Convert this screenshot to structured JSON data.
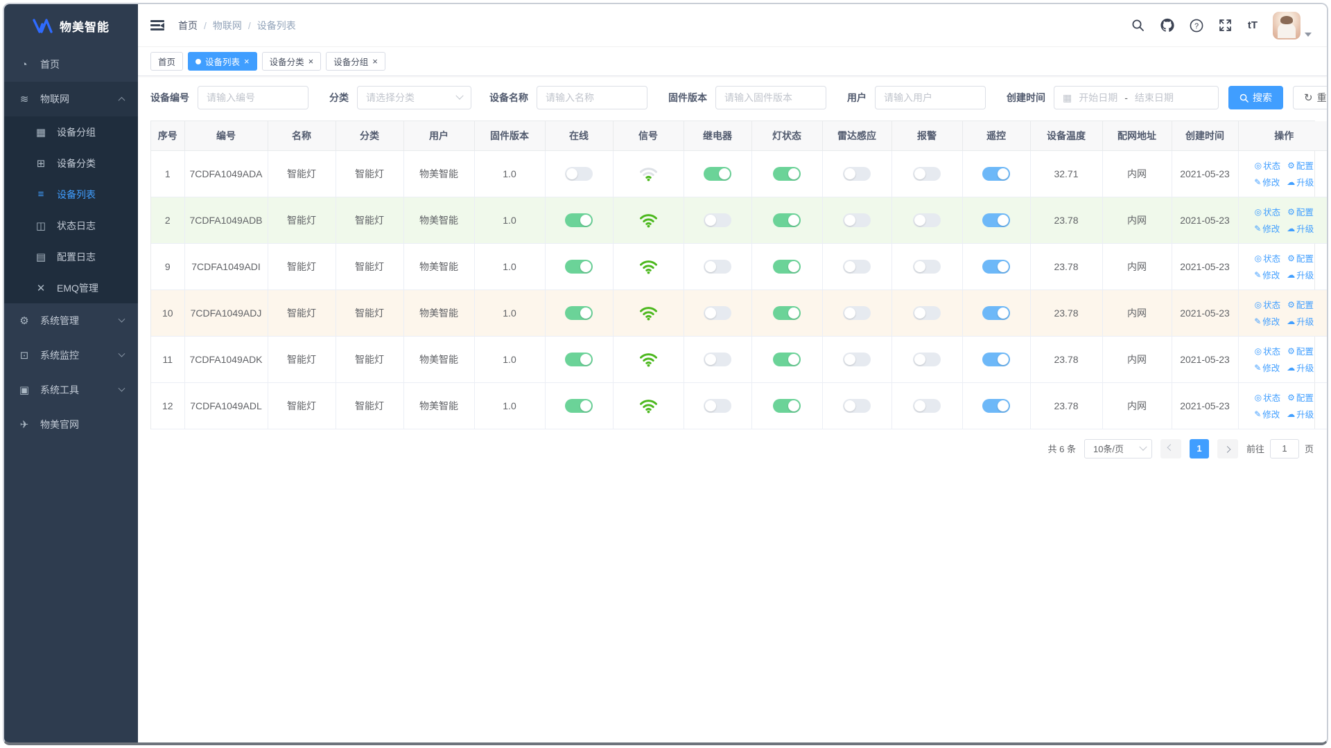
{
  "app": {
    "logo_text": "物美智能"
  },
  "sidebar": {
    "items": [
      {
        "id": "home",
        "icon": "dashboard-icon",
        "glyph": "◔",
        "label": "首页",
        "type": "item",
        "active": false
      },
      {
        "id": "iot",
        "icon": "iot-layers-icon",
        "glyph": "≋",
        "label": "物联网",
        "type": "parent-expanded",
        "active": false
      },
      {
        "id": "device-group",
        "icon": "device-group-icon",
        "glyph": "▦",
        "label": "设备分组",
        "type": "sub",
        "active": false
      },
      {
        "id": "device-category",
        "icon": "device-category-icon",
        "glyph": "⊞",
        "label": "设备分类",
        "type": "sub",
        "active": false
      },
      {
        "id": "device-list",
        "icon": "device-list-icon",
        "glyph": "≡",
        "label": "设备列表",
        "type": "sub",
        "active": true
      },
      {
        "id": "status-log",
        "icon": "status-log-icon",
        "glyph": "◫",
        "label": "状态日志",
        "type": "sub",
        "active": false
      },
      {
        "id": "config-log",
        "icon": "config-log-icon",
        "glyph": "▤",
        "label": "配置日志",
        "type": "sub",
        "active": false
      },
      {
        "id": "emq-admin",
        "icon": "emq-nodes-icon",
        "glyph": "✕",
        "label": "EMQ管理",
        "type": "sub",
        "active": false
      },
      {
        "id": "system-admin",
        "icon": "gear-icon",
        "glyph": "⚙",
        "label": "系统管理",
        "type": "parent",
        "active": false
      },
      {
        "id": "system-monitor",
        "icon": "monitor-icon",
        "glyph": "⊡",
        "label": "系统监控",
        "type": "parent",
        "active": false
      },
      {
        "id": "system-tools",
        "icon": "toolbox-icon",
        "glyph": "▣",
        "label": "系统工具",
        "type": "parent",
        "active": false
      },
      {
        "id": "official-site",
        "icon": "paper-plane-icon",
        "glyph": "✈",
        "label": "物美官网",
        "type": "item",
        "active": false
      }
    ]
  },
  "topbar": {
    "breadcrumb": [
      "首页",
      "物联网",
      "设备列表"
    ],
    "separator": "/",
    "font_size_icon_text": "tT"
  },
  "tabs": [
    {
      "label": "首页",
      "active": false,
      "closable": false,
      "dot": false
    },
    {
      "label": "设备列表",
      "active": true,
      "closable": true,
      "dot": true
    },
    {
      "label": "设备分类",
      "active": false,
      "closable": true,
      "dot": false
    },
    {
      "label": "设备分组",
      "active": false,
      "closable": true,
      "dot": false
    }
  ],
  "filters": {
    "device_no_label": "设备编号",
    "device_no_placeholder": "请输入编号",
    "category_label": "分类",
    "category_placeholder": "请选择分类",
    "name_label": "设备名称",
    "name_placeholder": "请输入名称",
    "firmware_label": "固件版本",
    "firmware_placeholder": "请输入固件版本",
    "user_label": "用户",
    "user_placeholder": "请输入用户",
    "created_label": "创建时间",
    "date_start_placeholder": "开始日期",
    "date_separator": "-",
    "date_end_placeholder": "结束日期",
    "search_label": "搜索",
    "reset_label": "重置",
    "reset_glyph": "↻",
    "calendar_glyph": "▦"
  },
  "table": {
    "columns": [
      "序号",
      "编号",
      "名称",
      "分类",
      "用户",
      "固件版本",
      "在线",
      "信号",
      "继电器",
      "灯状态",
      "雷达感应",
      "报警",
      "遥控",
      "设备温度",
      "配网地址",
      "创建时间",
      "操作"
    ],
    "actions": [
      {
        "id": "status",
        "label": "状态",
        "icon": "status-eye-icon",
        "glyph": "◎"
      },
      {
        "id": "config",
        "label": "配置",
        "icon": "config-gear-icon",
        "glyph": "⚙"
      },
      {
        "id": "modify",
        "label": "修改",
        "icon": "edit-pencil-icon",
        "glyph": "✎"
      },
      {
        "id": "upgrade",
        "label": "升级",
        "icon": "upgrade-cloud-icon",
        "glyph": "☁"
      }
    ],
    "rows": [
      {
        "index": "1",
        "device_no": "7CDFA1049ADA",
        "name": "智能灯",
        "category": "智能灯",
        "user": "物美智能",
        "firmware": "1.0",
        "online": false,
        "signal": "weak",
        "relay": true,
        "light": true,
        "radar": false,
        "alarm": false,
        "remote": true,
        "temperature": "32.71",
        "network": "内网",
        "created": "2021-05-23",
        "highlight": "none"
      },
      {
        "index": "2",
        "device_no": "7CDFA1049ADB",
        "name": "智能灯",
        "category": "智能灯",
        "user": "物美智能",
        "firmware": "1.0",
        "online": true,
        "signal": "strong",
        "relay": false,
        "light": true,
        "radar": false,
        "alarm": false,
        "remote": true,
        "temperature": "23.78",
        "network": "内网",
        "created": "2021-05-23",
        "highlight": "green"
      },
      {
        "index": "9",
        "device_no": "7CDFA1049ADI",
        "name": "智能灯",
        "category": "智能灯",
        "user": "物美智能",
        "firmware": "1.0",
        "online": true,
        "signal": "strong",
        "relay": false,
        "light": true,
        "radar": false,
        "alarm": false,
        "remote": true,
        "temperature": "23.78",
        "network": "内网",
        "created": "2021-05-23",
        "highlight": "none"
      },
      {
        "index": "10",
        "device_no": "7CDFA1049ADJ",
        "name": "智能灯",
        "category": "智能灯",
        "user": "物美智能",
        "firmware": "1.0",
        "online": true,
        "signal": "strong",
        "relay": false,
        "light": true,
        "radar": false,
        "alarm": false,
        "remote": true,
        "temperature": "23.78",
        "network": "内网",
        "created": "2021-05-23",
        "highlight": "orange"
      },
      {
        "index": "11",
        "device_no": "7CDFA1049ADK",
        "name": "智能灯",
        "category": "智能灯",
        "user": "物美智能",
        "firmware": "1.0",
        "online": true,
        "signal": "strong",
        "relay": false,
        "light": true,
        "radar": false,
        "alarm": false,
        "remote": true,
        "temperature": "23.78",
        "network": "内网",
        "created": "2021-05-23",
        "highlight": "none"
      },
      {
        "index": "12",
        "device_no": "7CDFA1049ADL",
        "name": "智能灯",
        "category": "智能灯",
        "user": "物美智能",
        "firmware": "1.0",
        "online": true,
        "signal": "strong",
        "relay": false,
        "light": true,
        "radar": false,
        "alarm": false,
        "remote": true,
        "temperature": "23.78",
        "network": "内网",
        "created": "2021-05-23",
        "highlight": "none"
      }
    ]
  },
  "pagination": {
    "total_text": "共 6 条",
    "page_size": "10条/页",
    "current_page": "1",
    "goto_label": "前往",
    "goto_value": "1",
    "page_suffix": "页"
  },
  "colors": {
    "accent": "#409eff",
    "toggle_on_green": "#6bd398",
    "toggle_on_blue": "#6db8f8",
    "toggle_off": "#e6eaf0",
    "wifi_strong_green": "#4cb81e",
    "wifi_weak_gray": "#dde1e6",
    "row_highlight_green": "#f0f9eb",
    "row_highlight_orange": "#fdf6ec",
    "sidebar_bg": "#2e3c4f",
    "submenu_bg": "#1f2d3d"
  }
}
